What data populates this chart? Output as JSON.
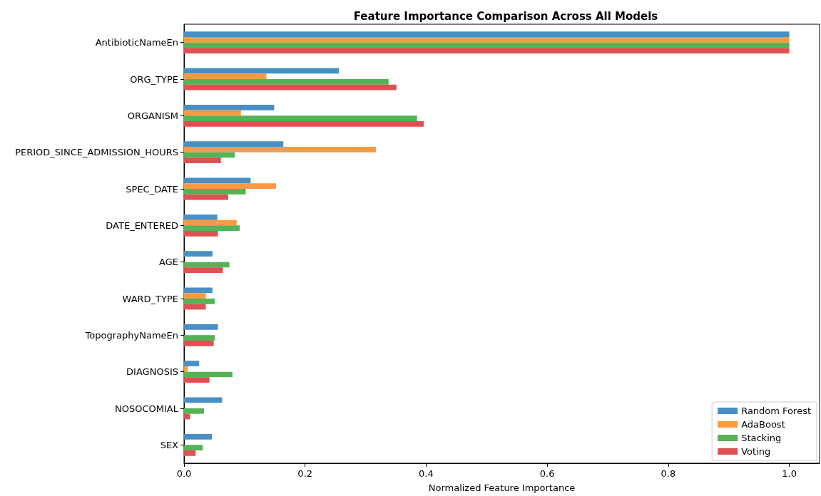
{
  "chart_data": {
    "type": "bar",
    "orientation": "horizontal",
    "title": "Feature Importance Comparison Across All Models",
    "xlabel": "Normalized Feature Importance",
    "categories": [
      "AntibioticNameEn",
      "ORG_TYPE",
      "ORGANISM",
      "PERIOD_SINCE_ADMISSION_HOURS",
      "SPEC_DATE",
      "DATE_ENTERED",
      "AGE",
      "WARD_TYPE",
      "TopographyNameEn",
      "DIAGNOSIS",
      "NOSOCOMIAL",
      "SEX"
    ],
    "series": [
      {
        "name": "Random Forest",
        "color": "#4a8fc3",
        "values": [
          1.0,
          0.256,
          0.149,
          0.164,
          0.11,
          0.055,
          0.047,
          0.047,
          0.056,
          0.025,
          0.063,
          0.046
        ]
      },
      {
        "name": "AdaBoost",
        "color": "#fe9a3f",
        "values": [
          1.0,
          0.136,
          0.094,
          0.317,
          0.152,
          0.087,
          0,
          0.036,
          0,
          0.006,
          0,
          0
        ]
      },
      {
        "name": "Stacking",
        "color": "#55b256",
        "values": [
          1.0,
          0.338,
          0.385,
          0.084,
          0.102,
          0.092,
          0.075,
          0.051,
          0.051,
          0.08,
          0.033,
          0.031
        ]
      },
      {
        "name": "Voting",
        "color": "#dd5152",
        "values": [
          1.0,
          0.351,
          0.396,
          0.061,
          0.073,
          0.056,
          0.064,
          0.036,
          0.049,
          0.042,
          0.01,
          0.019
        ]
      }
    ],
    "xlim": [
      0,
      1.05
    ],
    "xticks": [
      {
        "value": 0,
        "label": "0.0"
      },
      {
        "value": 0.2,
        "label": "0.2"
      },
      {
        "value": 0.4,
        "label": "0.4"
      },
      {
        "value": 0.6,
        "label": "0.6"
      },
      {
        "value": 0.8,
        "label": "0.8"
      },
      {
        "value": 1.0,
        "label": "1.0"
      }
    ],
    "grid": false,
    "legend": "bottom right"
  }
}
